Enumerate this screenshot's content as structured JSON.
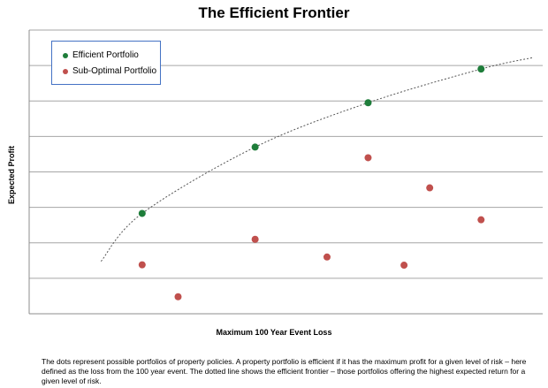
{
  "chart_data": {
    "type": "scatter",
    "title": "The Efficient Frontier",
    "xlabel": "Maximum 100 Year Event Loss",
    "ylabel": "Expected Profit",
    "xlim": [
      0,
      100
    ],
    "ylim": [
      0,
      8
    ],
    "grid": "horizontal",
    "legend_placement": "top-left",
    "series": [
      {
        "name": "Efficient Portfolio",
        "color": "#1e7d3a",
        "x": [
          22,
          44,
          66,
          88
        ],
        "y": [
          2.83,
          4.7,
          5.95,
          6.9
        ]
      },
      {
        "name": "Sub-Optimal Portfolio",
        "color": "#c0504d",
        "x": [
          22,
          29,
          44,
          58,
          66,
          73,
          78,
          88
        ],
        "y": [
          1.38,
          0.48,
          2.1,
          1.6,
          4.4,
          1.37,
          3.55,
          2.65
        ]
      }
    ],
    "frontier": [
      [
        14,
        1.48
      ],
      [
        22,
        2.83
      ],
      [
        44,
        4.7
      ],
      [
        66,
        5.95
      ],
      [
        88,
        6.9
      ],
      [
        98,
        7.22
      ]
    ]
  },
  "caption": "The dots represent possible portfolios of property policies. A property portfolio is efficient if it has the maximum profit for a given level of risk – here defined as the loss from the 100 year event.  The dotted  line shows the efficient frontier – those portfolios offering the highest expected  return for a given level of risk."
}
